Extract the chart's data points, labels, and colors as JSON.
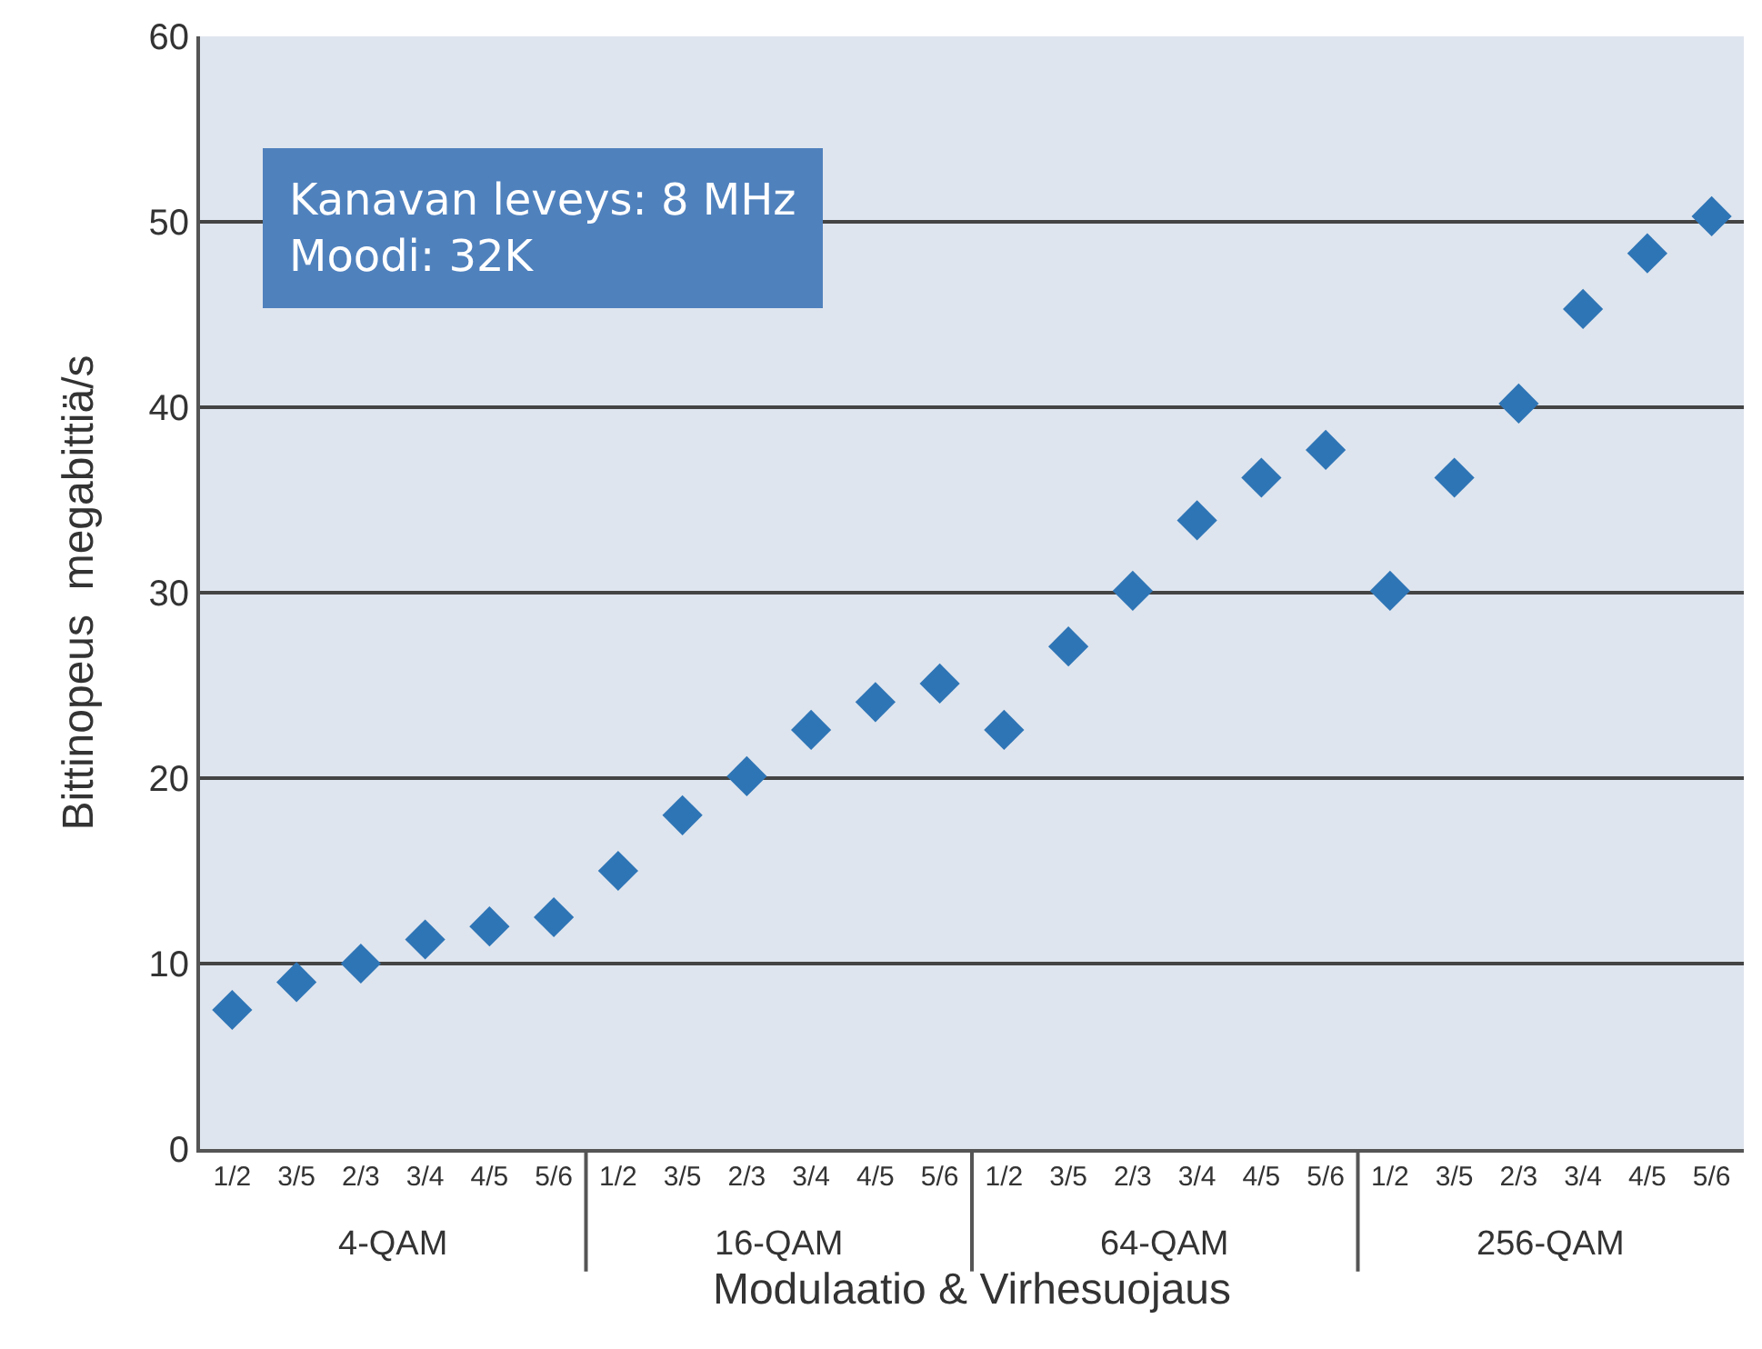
{
  "chart_data": {
    "type": "scatter",
    "ylabel": "Bittinopeus  megabittiä/s",
    "xlabel": "Modulaatio & Virhesuojaus",
    "categories": [
      "1/2",
      "3/5",
      "2/3",
      "3/4",
      "4/5",
      "5/6",
      "1/2",
      "3/5",
      "2/3",
      "3/4",
      "4/5",
      "5/6",
      "1/2",
      "3/5",
      "2/3",
      "3/4",
      "4/5",
      "5/6",
      "1/2",
      "3/5",
      "2/3",
      "3/4",
      "4/5",
      "5/6"
    ],
    "series": [
      {
        "color": "#2e75b6",
        "values": [
          7.5,
          9.0,
          10.0,
          11.3,
          12.0,
          12.5,
          15.0,
          18.0,
          20.1,
          22.6,
          24.1,
          25.1,
          22.6,
          27.1,
          30.1,
          33.9,
          36.2,
          37.7,
          30.1,
          36.2,
          40.2,
          45.3,
          48.3,
          50.3
        ]
      }
    ],
    "annotations": [
      "Kanavan leveys: 8 MHz\nMoodi: 32K",
      "4-QAM",
      "16-QAM",
      "64-QAM",
      "256-QAM"
    ],
    "ylim": [
      0,
      60
    ],
    "yticks": [
      0,
      10,
      20,
      30,
      40,
      50,
      60
    ],
    "grid": "y",
    "marker": "diamond"
  }
}
